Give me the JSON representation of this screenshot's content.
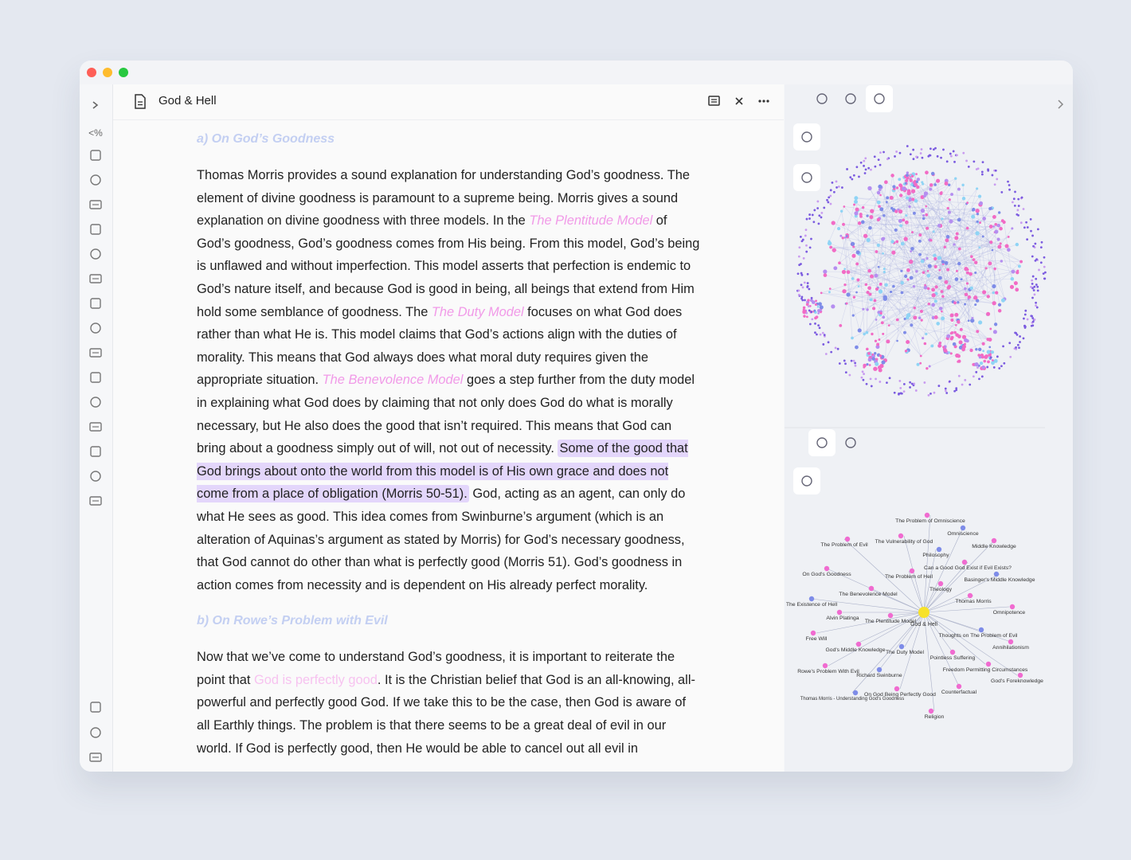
{
  "window": {
    "tab_title": "God & Hell"
  },
  "sidebar": {
    "template_icon": "<%"
  },
  "note": {
    "sections": [
      {
        "heading": "a) On God’s Goodness",
        "paragraph": {
          "segments": [
            {
              "text": "Thomas Morris provides a sound explanation for understanding God’s goodness. The element of divine goodness is paramount to a supreme being. Morris gives a sound explanation on divine goodness with three models. In the ",
              "style": "plain"
            },
            {
              "text": "The Plentitude Model",
              "style": "link"
            },
            {
              "text": " of God’s goodness, God’s goodness comes from His being. From this model, God’s being is unflawed and without imperfection. This model asserts that perfection is endemic to God’s nature itself, and because God is good in being, all beings that extend from Him hold some semblance of goodness. The ",
              "style": "plain"
            },
            {
              "text": "The Duty Model",
              "style": "link"
            },
            {
              "text": " focuses on what God does rather than what He is. This model claims that God’s actions align with the duties of morality. This means that God always does what moral duty requires given the appropriate situation. ",
              "style": "plain"
            },
            {
              "text": "The Benevolence Model",
              "style": "link"
            },
            {
              "text": " goes a step further from the duty model in explaining what God does by claiming that not only does God do what is morally necessary, but He also does the good that isn’t required. This means that God can bring about a goodness simply out of will, not out of necessity. ",
              "style": "plain"
            },
            {
              "text": "Some of the good that God brings about onto the world from this model is of His own grace and does not come from a place of obligation (Morris 50-51).",
              "style": "highlight"
            },
            {
              "text": " God, acting as an agent, can only do what He sees as good. This idea comes from Swinburne’s argument (which is an alteration of Aquinas’s argument as stated by Morris) for God’s necessary goodness, that God cannot do other than what is perfectly good (Morris 51). God’s goodness in action comes from necessity and is dependent on His already perfect morality.",
              "style": "plain"
            }
          ]
        }
      },
      {
        "heading": "b) On Rowe’s Problem with Evil",
        "paragraph": {
          "segments": [
            {
              "text": "Now that we’ve come to understand God’s goodness, it is important to reiterate the point that ",
              "style": "plain"
            },
            {
              "text": "God is perfectly good",
              "style": "unresolved-link"
            },
            {
              "text": ". It is the Christian belief that God is an all-knowing, all-powerful and perfectly good God. If we take this to be the case, then God is aware of all Earthly things. The problem is that there seems to be a great deal of evil in our world. If God is perfectly good, then He would be able to cancel out all evil in",
              "style": "plain"
            }
          ]
        }
      }
    ]
  },
  "local_graph": {
    "center": "God & Hell",
    "nodes": [
      "The Problem of Omniscience",
      "Omniscience",
      "The Problem of Evil",
      "The Vulnerability of God",
      "Middle Knowledge",
      "Philosophy",
      "Can a Good God Exist if Evil Exists?",
      "On God's Goodness",
      "The Problem of Hell",
      "Basinger's Middle Knowledge",
      "Theology",
      "The Benevolence Model",
      "Thomas Morris",
      "The Existence of Hell",
      "Omnipotence",
      "Alvin Platinga",
      "The Plentitude Model",
      "Thoughts on The Problem of Evil",
      "Free Will",
      "Annihilationism",
      "God's Middle Knowledge",
      "The Duty Model",
      "Pointless Suffering",
      "Freedom Permitting Circumstances",
      "Rowe's Problem With Evil",
      "Richard Swinburne",
      "God's Foreknowledge",
      "On God Being Perfectly Good",
      "Counterfactual",
      "Thomas Morris - Understanding God's Goodness",
      "Religion"
    ]
  }
}
